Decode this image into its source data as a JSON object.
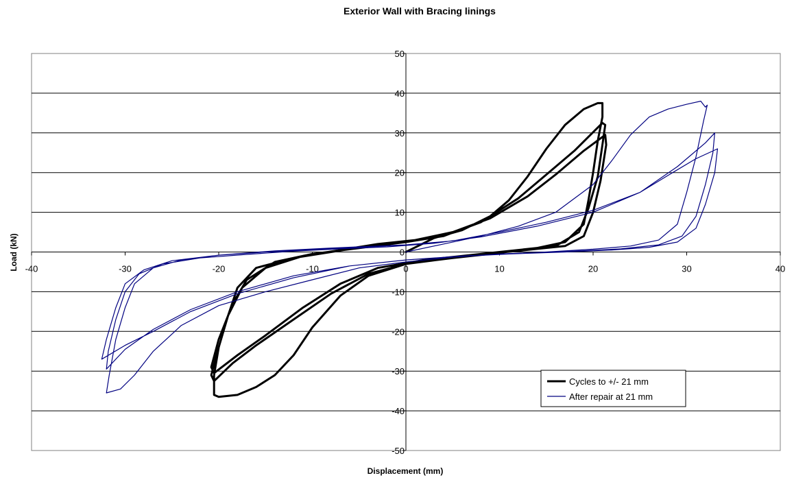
{
  "chart_data": {
    "type": "line",
    "title": "Exterior Wall with Bracing linings",
    "xlabel": "Displacement (mm)",
    "ylabel": "Load (kN)",
    "xlim": [
      -40,
      40
    ],
    "ylim": [
      -50,
      50
    ],
    "x_ticks": [
      -40,
      -30,
      -20,
      -10,
      0,
      10,
      20,
      30,
      40
    ],
    "y_ticks": [
      50,
      40,
      30,
      20,
      10,
      0,
      -10,
      -20,
      -30,
      -40,
      -50
    ],
    "grid": "horizontal",
    "legend_position": "bottom-right",
    "series": [
      {
        "name": "Cycles to +/- 21 mm",
        "color": "#000000",
        "points": [
          [
            0,
            0
          ],
          [
            3,
            3.5
          ],
          [
            6,
            5.5
          ],
          [
            9,
            9
          ],
          [
            11,
            13
          ],
          [
            13,
            19
          ],
          [
            15,
            26
          ],
          [
            17,
            32
          ],
          [
            19,
            36
          ],
          [
            20.5,
            37.5
          ],
          [
            21,
            37.5
          ],
          [
            21,
            34
          ],
          [
            20.5,
            28
          ],
          [
            20,
            20
          ],
          [
            19.5,
            13
          ],
          [
            19,
            7
          ],
          [
            17,
            2.5
          ],
          [
            14,
            1
          ],
          [
            10,
            -0.2
          ],
          [
            5,
            -1.5
          ],
          [
            0,
            -3
          ],
          [
            -4,
            -6
          ],
          [
            -7,
            -11
          ],
          [
            -10,
            -19
          ],
          [
            -12,
            -26
          ],
          [
            -14,
            -31
          ],
          [
            -16,
            -34
          ],
          [
            -18,
            -36
          ],
          [
            -20,
            -36.5
          ],
          [
            -20.5,
            -36
          ],
          [
            -20.5,
            -31
          ],
          [
            -20,
            -24
          ],
          [
            -19,
            -16
          ],
          [
            -18,
            -9
          ],
          [
            -16,
            -4
          ],
          [
            -12,
            -1.5
          ],
          [
            -8,
            0
          ],
          [
            -4,
            1.5
          ],
          [
            0,
            2.5
          ],
          [
            4,
            4
          ],
          [
            8,
            7.5
          ],
          [
            12,
            13.5
          ],
          [
            15,
            19.5
          ],
          [
            18,
            25.5
          ],
          [
            21,
            32.5
          ],
          [
            21.3,
            32
          ],
          [
            21,
            27
          ],
          [
            20.5,
            19
          ],
          [
            19.5,
            11
          ],
          [
            18.5,
            5
          ],
          [
            16,
            1.5
          ],
          [
            12,
            0.5
          ],
          [
            8,
            -0.5
          ],
          [
            4,
            -1.5
          ],
          [
            0,
            -3
          ],
          [
            -4,
            -5.5
          ],
          [
            -8,
            -10.5
          ],
          [
            -12,
            -17
          ],
          [
            -16,
            -23.5
          ],
          [
            -18.5,
            -28
          ],
          [
            -20.5,
            -32.5
          ],
          [
            -20.8,
            -31
          ],
          [
            -20,
            -24
          ],
          [
            -19,
            -16
          ],
          [
            -17.5,
            -9
          ],
          [
            -15,
            -4
          ],
          [
            -11,
            -1
          ],
          [
            -7,
            0.5
          ],
          [
            -3,
            2
          ],
          [
            1,
            3
          ],
          [
            5,
            5
          ],
          [
            9,
            8.5
          ],
          [
            13,
            14
          ],
          [
            16,
            19.5
          ],
          [
            19,
            25.5
          ],
          [
            21.3,
            29.5
          ],
          [
            21.4,
            27
          ],
          [
            20.8,
            18
          ],
          [
            20,
            10
          ],
          [
            19,
            4
          ],
          [
            17,
            1.5
          ],
          [
            12,
            0.3
          ],
          [
            7,
            -0.8
          ],
          [
            2,
            -2
          ],
          [
            -3,
            -4
          ],
          [
            -7,
            -8
          ],
          [
            -11,
            -14
          ],
          [
            -15,
            -21
          ],
          [
            -18,
            -26
          ],
          [
            -20.5,
            -30.5
          ],
          [
            -20.8,
            -29
          ],
          [
            -20,
            -22
          ],
          [
            -18.5,
            -13
          ],
          [
            -17,
            -7
          ],
          [
            -14,
            -2.5
          ],
          [
            -10,
            -0.5
          ],
          [
            -5,
            1
          ],
          [
            0,
            2.5
          ]
        ]
      },
      {
        "name": "After repair at 21 mm",
        "color": "#000080",
        "points": [
          [
            0,
            0
          ],
          [
            4,
            2
          ],
          [
            8,
            4
          ],
          [
            12,
            6.5
          ],
          [
            16,
            10
          ],
          [
            20,
            17
          ],
          [
            22,
            23
          ],
          [
            24,
            29.5
          ],
          [
            26,
            34
          ],
          [
            28,
            36
          ],
          [
            30,
            37.2
          ],
          [
            31.5,
            38
          ],
          [
            32,
            36.5
          ],
          [
            32.2,
            37
          ],
          [
            31.8,
            33
          ],
          [
            31,
            24
          ],
          [
            30,
            15
          ],
          [
            29,
            7
          ],
          [
            27,
            3
          ],
          [
            24,
            1.5
          ],
          [
            20,
            0.7
          ],
          [
            15,
            0
          ],
          [
            10,
            -0.5
          ],
          [
            5,
            -1.3
          ],
          [
            0,
            -2.5
          ],
          [
            -5,
            -4
          ],
          [
            -10,
            -7
          ],
          [
            -15,
            -10
          ],
          [
            -20,
            -13.5
          ],
          [
            -24,
            -18.5
          ],
          [
            -27,
            -25
          ],
          [
            -29,
            -31
          ],
          [
            -30.5,
            -34.5
          ],
          [
            -32,
            -35.5
          ],
          [
            -31.7,
            -31
          ],
          [
            -31,
            -22
          ],
          [
            -30,
            -14
          ],
          [
            -29,
            -8
          ],
          [
            -27,
            -4
          ],
          [
            -24,
            -2
          ],
          [
            -20,
            -0.8
          ],
          [
            -15,
            0
          ],
          [
            -10,
            0.6
          ],
          [
            -5,
            1.2
          ],
          [
            0,
            1.8
          ],
          [
            5,
            2.8
          ],
          [
            10,
            5
          ],
          [
            15,
            7.5
          ],
          [
            20,
            10.5
          ],
          [
            25,
            15
          ],
          [
            29,
            21.5
          ],
          [
            32,
            27.5
          ],
          [
            33,
            30
          ],
          [
            32.8,
            25
          ],
          [
            32,
            17
          ],
          [
            31,
            9
          ],
          [
            29.5,
            4
          ],
          [
            27,
            1.8
          ],
          [
            23,
            0.8
          ],
          [
            18,
            0.2
          ],
          [
            12,
            -0.3
          ],
          [
            6,
            -1
          ],
          [
            0,
            -2
          ],
          [
            -6,
            -3.5
          ],
          [
            -12,
            -6
          ],
          [
            -18,
            -10
          ],
          [
            -23,
            -14.5
          ],
          [
            -27,
            -19.5
          ],
          [
            -30,
            -24.5
          ],
          [
            -32,
            -29.5
          ],
          [
            -31.8,
            -25
          ],
          [
            -31,
            -17
          ],
          [
            -30,
            -10
          ],
          [
            -28.5,
            -5.5
          ],
          [
            -26,
            -3
          ],
          [
            -22,
            -1.5
          ],
          [
            -17,
            -0.6
          ],
          [
            -12,
            0.2
          ],
          [
            -7,
            0.8
          ],
          [
            -2,
            1.3
          ],
          [
            3,
            2.2
          ],
          [
            8,
            3.8
          ],
          [
            14,
            6.5
          ],
          [
            20,
            10
          ],
          [
            25,
            15
          ],
          [
            28.5,
            20
          ],
          [
            31,
            23.5
          ],
          [
            33.3,
            26
          ],
          [
            33,
            20
          ],
          [
            32,
            12
          ],
          [
            31,
            6
          ],
          [
            29,
            2.5
          ],
          [
            26,
            1.2
          ],
          [
            22,
            0.5
          ],
          [
            17,
            0
          ],
          [
            11,
            -0.5
          ],
          [
            5,
            -1.2
          ],
          [
            0,
            -2
          ],
          [
            -6,
            -3.5
          ],
          [
            -12,
            -6.5
          ],
          [
            -18,
            -10.5
          ],
          [
            -23,
            -15
          ],
          [
            -27,
            -20
          ],
          [
            -30,
            -23.5
          ],
          [
            -32.5,
            -27
          ],
          [
            -32,
            -22
          ],
          [
            -31,
            -14
          ],
          [
            -30,
            -8
          ],
          [
            -28,
            -4.5
          ],
          [
            -25,
            -2.2
          ],
          [
            -20,
            -0.8
          ],
          [
            -14,
            0.3
          ],
          [
            -8,
            1
          ],
          [
            0,
            1.8
          ]
        ]
      }
    ]
  }
}
